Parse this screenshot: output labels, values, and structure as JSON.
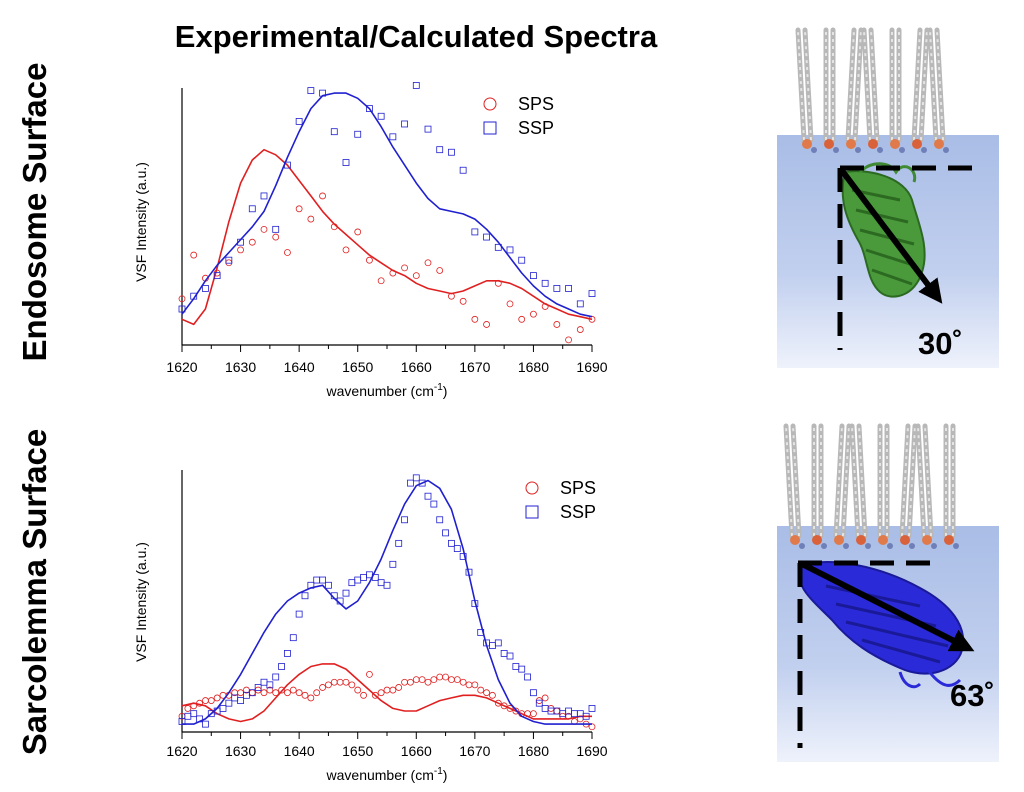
{
  "figure": {
    "title": "Experimental/Calculated Spectra",
    "rows": [
      {
        "label": "Endosome Surface",
        "angle_label": "30˚",
        "protein_color": "#4a9a3c"
      },
      {
        "label": "Sarcolemma Surface",
        "angle_label": "63˚",
        "protein_color": "#2a2ad8"
      }
    ]
  },
  "colors": {
    "SPS": "#e02020",
    "SSP": "#2020d0",
    "water": "#b8c8ea"
  },
  "chart_data": [
    {
      "type": "scatter",
      "title": "",
      "xlabel": "wavenumber (cm",
      "xlabel_sup": "-1",
      "xlabel_tail": ")",
      "ylabel": "VSF Intensity (a.u.)",
      "xlim": [
        1620,
        1690
      ],
      "ylim": [
        0,
        1
      ],
      "x_ticks": [
        "1620",
        "1630",
        "1640",
        "1650",
        "1660",
        "1670",
        "1680",
        "1690"
      ],
      "legend": [
        "SPS",
        "SSP"
      ],
      "legend_position": "top-right",
      "series": [
        {
          "name": "SPS",
          "kind": "points",
          "marker": "circle",
          "x": [
            1620,
            1622,
            1624,
            1626,
            1628,
            1630,
            1632,
            1634,
            1636,
            1638,
            1640,
            1642,
            1644,
            1646,
            1648,
            1650,
            1652,
            1654,
            1656,
            1658,
            1660,
            1662,
            1664,
            1666,
            1668,
            1670,
            1672,
            1674,
            1676,
            1678,
            1680,
            1682,
            1684,
            1686,
            1688,
            1690
          ],
          "y": [
            0.18,
            0.35,
            0.26,
            0.28,
            0.32,
            0.37,
            0.4,
            0.45,
            0.42,
            0.36,
            0.53,
            0.49,
            0.58,
            0.46,
            0.37,
            0.44,
            0.33,
            0.25,
            0.28,
            0.3,
            0.27,
            0.32,
            0.29,
            0.19,
            0.17,
            0.1,
            0.08,
            0.24,
            0.16,
            0.1,
            0.12,
            0.15,
            0.08,
            0.02,
            0.06,
            0.1
          ]
        },
        {
          "name": "SPS",
          "kind": "fit",
          "x": [
            1620,
            1622,
            1624,
            1626,
            1628,
            1630,
            1632,
            1634,
            1636,
            1638,
            1640,
            1642,
            1644,
            1646,
            1648,
            1650,
            1652,
            1654,
            1656,
            1658,
            1660,
            1662,
            1664,
            1666,
            1668,
            1670,
            1672,
            1674,
            1676,
            1678,
            1680,
            1682,
            1684,
            1686,
            1688,
            1690
          ],
          "y": [
            0.1,
            0.08,
            0.14,
            0.3,
            0.48,
            0.63,
            0.72,
            0.76,
            0.74,
            0.7,
            0.64,
            0.58,
            0.52,
            0.47,
            0.43,
            0.39,
            0.35,
            0.32,
            0.29,
            0.27,
            0.24,
            0.22,
            0.21,
            0.2,
            0.21,
            0.23,
            0.25,
            0.25,
            0.24,
            0.22,
            0.19,
            0.16,
            0.14,
            0.12,
            0.11,
            0.1
          ]
        },
        {
          "name": "SSP",
          "kind": "points",
          "marker": "square",
          "x": [
            1620,
            1622,
            1624,
            1626,
            1628,
            1630,
            1632,
            1634,
            1636,
            1638,
            1640,
            1642,
            1644,
            1646,
            1648,
            1650,
            1652,
            1654,
            1656,
            1658,
            1660,
            1662,
            1664,
            1666,
            1668,
            1670,
            1672,
            1674,
            1676,
            1678,
            1680,
            1682,
            1684,
            1686,
            1688,
            1690
          ],
          "y": [
            0.14,
            0.19,
            0.22,
            0.27,
            0.33,
            0.4,
            0.53,
            0.58,
            0.45,
            0.7,
            0.87,
            0.99,
            0.98,
            0.83,
            0.71,
            0.82,
            0.92,
            0.89,
            0.81,
            0.86,
            1.01,
            0.84,
            0.76,
            0.75,
            0.68,
            0.44,
            0.42,
            0.38,
            0.37,
            0.33,
            0.27,
            0.24,
            0.22,
            0.22,
            0.16,
            0.2
          ]
        },
        {
          "name": "SSP",
          "kind": "fit",
          "x": [
            1620,
            1622,
            1624,
            1626,
            1628,
            1630,
            1632,
            1634,
            1636,
            1638,
            1640,
            1642,
            1644,
            1646,
            1648,
            1650,
            1652,
            1654,
            1656,
            1658,
            1660,
            1662,
            1664,
            1666,
            1668,
            1670,
            1672,
            1674,
            1676,
            1678,
            1680,
            1682,
            1684,
            1686,
            1688,
            1690
          ],
          "y": [
            0.12,
            0.18,
            0.25,
            0.31,
            0.36,
            0.41,
            0.46,
            0.52,
            0.62,
            0.73,
            0.83,
            0.92,
            0.97,
            0.98,
            0.98,
            0.96,
            0.92,
            0.85,
            0.77,
            0.7,
            0.63,
            0.57,
            0.53,
            0.52,
            0.51,
            0.49,
            0.45,
            0.4,
            0.34,
            0.28,
            0.23,
            0.19,
            0.16,
            0.14,
            0.12,
            0.11
          ]
        }
      ]
    },
    {
      "type": "scatter",
      "title": "",
      "xlabel": "wavenumber (cm",
      "xlabel_sup": "-1",
      "xlabel_tail": ")",
      "ylabel": "VSF Intensity (a.u.)",
      "xlim": [
        1620,
        1690
      ],
      "ylim": [
        0,
        1
      ],
      "x_ticks": [
        "1620",
        "1630",
        "1640",
        "1650",
        "1660",
        "1670",
        "1680",
        "1690"
      ],
      "legend": [
        "SPS",
        "SSP"
      ],
      "legend_position": "top-right",
      "series": [
        {
          "name": "SPS",
          "kind": "points",
          "marker": "circle",
          "x": [
            1620,
            1621,
            1622,
            1623,
            1624,
            1625,
            1626,
            1627,
            1628,
            1629,
            1630,
            1631,
            1632,
            1633,
            1634,
            1635,
            1636,
            1637,
            1638,
            1639,
            1640,
            1641,
            1642,
            1643,
            1644,
            1645,
            1646,
            1647,
            1648,
            1649,
            1650,
            1651,
            1652,
            1653,
            1654,
            1655,
            1656,
            1657,
            1658,
            1659,
            1660,
            1661,
            1662,
            1663,
            1664,
            1665,
            1666,
            1667,
            1668,
            1669,
            1670,
            1671,
            1672,
            1673,
            1674,
            1675,
            1676,
            1677,
            1678,
            1679,
            1680,
            1681,
            1682,
            1683,
            1684,
            1685,
            1686,
            1687,
            1688,
            1689,
            1690
          ],
          "y": [
            0.06,
            0.09,
            0.1,
            0.11,
            0.12,
            0.12,
            0.13,
            0.14,
            0.14,
            0.15,
            0.15,
            0.16,
            0.15,
            0.16,
            0.15,
            0.16,
            0.15,
            0.16,
            0.15,
            0.16,
            0.15,
            0.14,
            0.13,
            0.15,
            0.17,
            0.18,
            0.19,
            0.19,
            0.19,
            0.18,
            0.16,
            0.14,
            0.22,
            0.14,
            0.15,
            0.16,
            0.16,
            0.17,
            0.19,
            0.19,
            0.2,
            0.2,
            0.19,
            0.2,
            0.21,
            0.21,
            0.2,
            0.2,
            0.19,
            0.18,
            0.18,
            0.16,
            0.15,
            0.14,
            0.11,
            0.1,
            0.09,
            0.08,
            0.07,
            0.07,
            0.07,
            0.12,
            0.13,
            0.09,
            0.08,
            0.06,
            0.06,
            0.04,
            0.05,
            0.03,
            0.02
          ]
        },
        {
          "name": "SPS",
          "kind": "fit",
          "x": [
            1620,
            1622,
            1624,
            1626,
            1628,
            1630,
            1632,
            1634,
            1636,
            1638,
            1640,
            1642,
            1644,
            1646,
            1648,
            1650,
            1652,
            1654,
            1656,
            1658,
            1660,
            1662,
            1664,
            1666,
            1668,
            1670,
            1672,
            1674,
            1676,
            1678,
            1680,
            1682,
            1684,
            1686,
            1688,
            1690
          ],
          "y": [
            0.1,
            0.11,
            0.1,
            0.07,
            0.05,
            0.04,
            0.05,
            0.08,
            0.13,
            0.18,
            0.22,
            0.25,
            0.26,
            0.26,
            0.24,
            0.2,
            0.16,
            0.12,
            0.09,
            0.08,
            0.08,
            0.1,
            0.12,
            0.13,
            0.14,
            0.14,
            0.13,
            0.11,
            0.09,
            0.07,
            0.05,
            0.05,
            0.05,
            0.05,
            0.06,
            0.06
          ]
        },
        {
          "name": "SSP",
          "kind": "points",
          "marker": "square",
          "x": [
            1620,
            1621,
            1622,
            1623,
            1624,
            1625,
            1626,
            1627,
            1628,
            1629,
            1630,
            1631,
            1632,
            1633,
            1634,
            1635,
            1636,
            1637,
            1638,
            1639,
            1640,
            1641,
            1642,
            1643,
            1644,
            1645,
            1646,
            1647,
            1648,
            1649,
            1650,
            1651,
            1652,
            1653,
            1654,
            1655,
            1656,
            1657,
            1658,
            1659,
            1660,
            1661,
            1662,
            1663,
            1664,
            1665,
            1666,
            1667,
            1668,
            1669,
            1670,
            1671,
            1672,
            1673,
            1674,
            1675,
            1676,
            1677,
            1678,
            1679,
            1680,
            1681,
            1682,
            1683,
            1684,
            1685,
            1686,
            1687,
            1688,
            1689,
            1690
          ],
          "y": [
            0.04,
            0.06,
            0.07,
            0.05,
            0.03,
            0.07,
            0.08,
            0.09,
            0.11,
            0.13,
            0.12,
            0.14,
            0.15,
            0.17,
            0.19,
            0.18,
            0.21,
            0.25,
            0.3,
            0.36,
            0.45,
            0.52,
            0.56,
            0.58,
            0.58,
            0.56,
            0.52,
            0.5,
            0.53,
            0.57,
            0.58,
            0.59,
            0.6,
            0.59,
            0.57,
            0.56,
            0.64,
            0.72,
            0.81,
            0.95,
            0.97,
            0.95,
            0.9,
            0.87,
            0.81,
            0.76,
            0.72,
            0.7,
            0.67,
            0.61,
            0.49,
            0.38,
            0.34,
            0.33,
            0.34,
            0.3,
            0.29,
            0.25,
            0.24,
            0.21,
            0.15,
            0.11,
            0.09,
            0.08,
            0.08,
            0.07,
            0.08,
            0.07,
            0.07,
            0.06,
            0.09
          ]
        },
        {
          "name": "SSP",
          "kind": "fit",
          "x": [
            1620,
            1622,
            1624,
            1626,
            1628,
            1630,
            1632,
            1634,
            1636,
            1638,
            1640,
            1642,
            1644,
            1646,
            1648,
            1650,
            1652,
            1654,
            1656,
            1658,
            1660,
            1662,
            1664,
            1666,
            1668,
            1670,
            1672,
            1674,
            1676,
            1678,
            1680,
            1682,
            1684,
            1686,
            1688,
            1690
          ],
          "y": [
            0.03,
            0.03,
            0.05,
            0.09,
            0.15,
            0.22,
            0.3,
            0.38,
            0.45,
            0.5,
            0.53,
            0.55,
            0.56,
            0.51,
            0.47,
            0.5,
            0.57,
            0.66,
            0.77,
            0.87,
            0.94,
            0.96,
            0.93,
            0.85,
            0.7,
            0.5,
            0.33,
            0.2,
            0.11,
            0.06,
            0.04,
            0.03,
            0.03,
            0.03,
            0.03,
            0.03
          ]
        }
      ]
    }
  ]
}
